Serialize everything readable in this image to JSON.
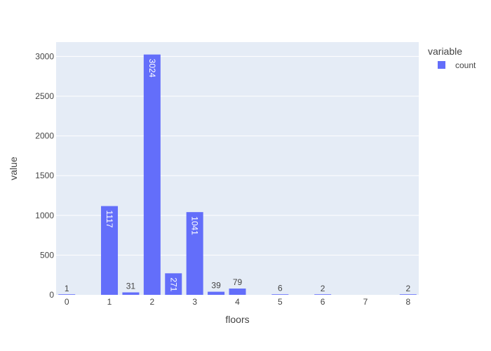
{
  "chart_data": {
    "type": "bar",
    "xlabel": "floors",
    "ylabel": "value",
    "legend_title": "variable",
    "legend_placement": "top-right",
    "grid": true,
    "xlim": [
      -0.25,
      8.25
    ],
    "ylim": [
      0,
      3180
    ],
    "x_ticks": [
      "0",
      "1",
      "2",
      "3",
      "4",
      "5",
      "6",
      "7",
      "8"
    ],
    "y_ticks": [
      "0",
      "500",
      "1000",
      "1500",
      "2000",
      "2500",
      "3000"
    ],
    "series": [
      {
        "name": "count",
        "color": "#636efa",
        "points": [
          {
            "x": 0,
            "y": 1,
            "label": "1"
          },
          {
            "x": 1,
            "y": 1117,
            "label": "1117"
          },
          {
            "x": 1.5,
            "y": 31,
            "label": "31"
          },
          {
            "x": 2,
            "y": 3024,
            "label": "3024"
          },
          {
            "x": 2.5,
            "y": 271,
            "label": "271"
          },
          {
            "x": 3,
            "y": 1041,
            "label": "1041"
          },
          {
            "x": 3.5,
            "y": 39,
            "label": "39"
          },
          {
            "x": 4,
            "y": 79,
            "label": "79"
          },
          {
            "x": 5,
            "y": 6,
            "label": "6"
          },
          {
            "x": 6,
            "y": 2,
            "label": "2"
          },
          {
            "x": 8,
            "y": 2,
            "label": "2"
          }
        ]
      }
    ]
  }
}
